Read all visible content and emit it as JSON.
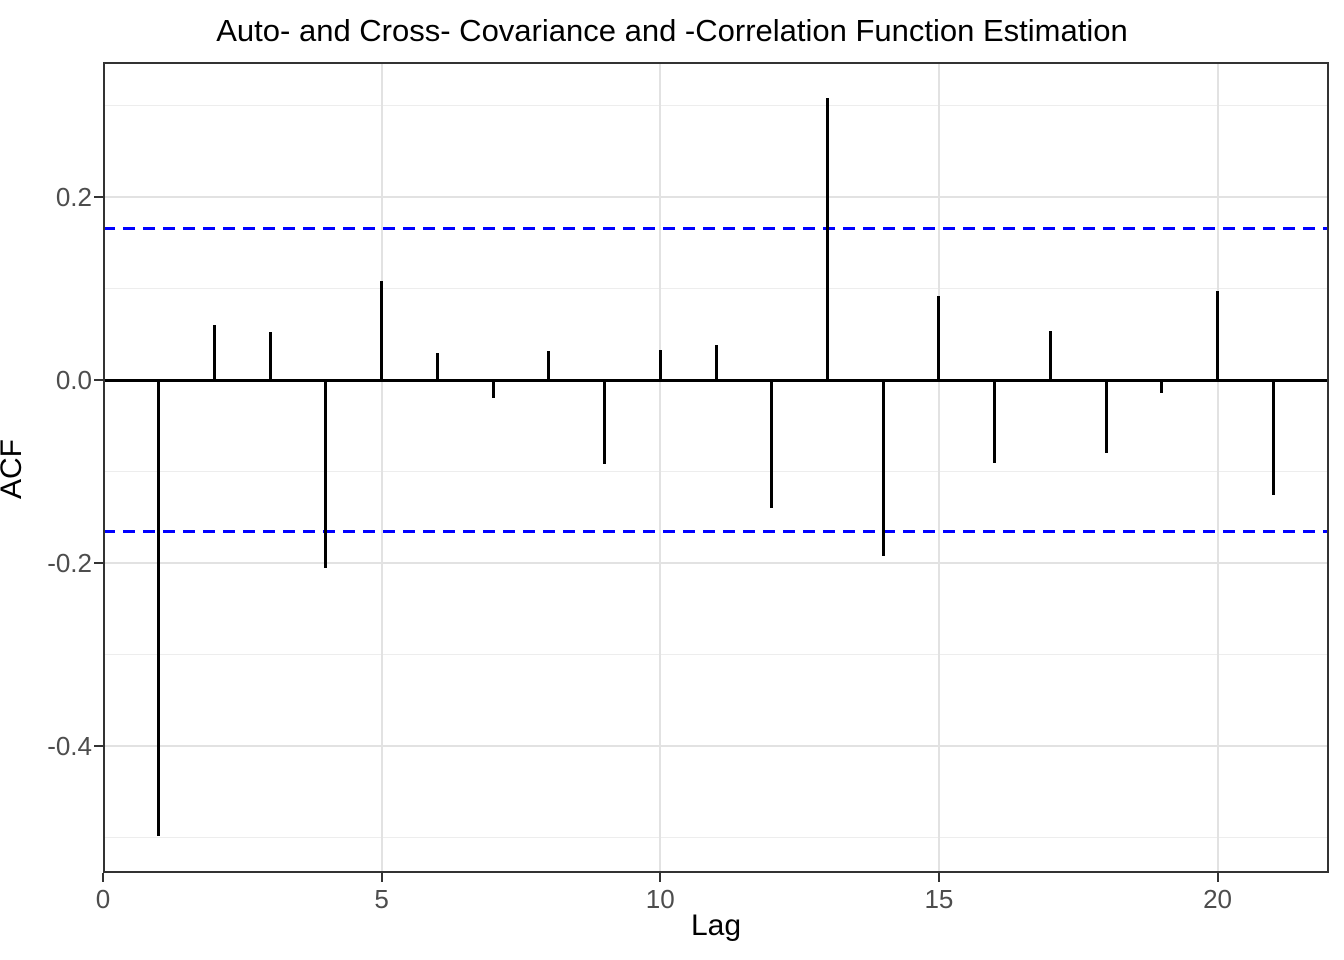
{
  "figure": {
    "title": "Auto- and Cross- Covariance and -Correlation Function Estimation"
  },
  "chart_data": {
    "type": "bar",
    "variant": "acf-stem-plot",
    "title": "Auto- and Cross- Covariance and -Correlation Function Estimation",
    "xlabel": "Lag",
    "ylabel": "ACF",
    "x": [
      1,
      2,
      3,
      4,
      5,
      6,
      7,
      8,
      9,
      10,
      11,
      12,
      13,
      14,
      15,
      16,
      17,
      18,
      19,
      20,
      21
    ],
    "values": [
      -0.498,
      0.06,
      0.053,
      -0.205,
      0.109,
      0.03,
      -0.02,
      0.032,
      -0.092,
      0.033,
      0.039,
      -0.14,
      0.309,
      -0.192,
      0.092,
      -0.091,
      0.054,
      -0.08,
      -0.014,
      0.098,
      -0.126
    ],
    "zero_line": 0.0,
    "confidence_bounds": {
      "upper": 0.166,
      "lower": -0.166,
      "style": "dashed",
      "color": "#0000ff"
    },
    "x_axis": {
      "lim": [
        0,
        22
      ],
      "ticks": [
        0,
        5,
        10,
        15,
        20
      ],
      "tick_labels": [
        "0",
        "5",
        "10",
        "15",
        "20"
      ],
      "major_gridlines": [
        0,
        5,
        10,
        15,
        20
      ]
    },
    "y_axis": {
      "lim": [
        -0.539,
        0.348
      ],
      "ticks": [
        0.2,
        0.0,
        -0.2,
        -0.4
      ],
      "tick_labels": [
        "0.2",
        "0.0",
        "-0.2",
        "-0.4"
      ],
      "major_gridlines": [
        0.2,
        0.0,
        -0.2,
        -0.4
      ],
      "minor_gridlines": [
        0.3,
        0.1,
        -0.1,
        -0.3,
        -0.5
      ]
    },
    "grid": true,
    "legend": false,
    "colors": {
      "series": "#000000",
      "confidence": "#0000ff",
      "grid_major": "#e2e2e2",
      "grid_minor": "#ededed",
      "panel_border": "#333333",
      "tick_text": "#4d4d4d",
      "background": "#ffffff"
    }
  }
}
